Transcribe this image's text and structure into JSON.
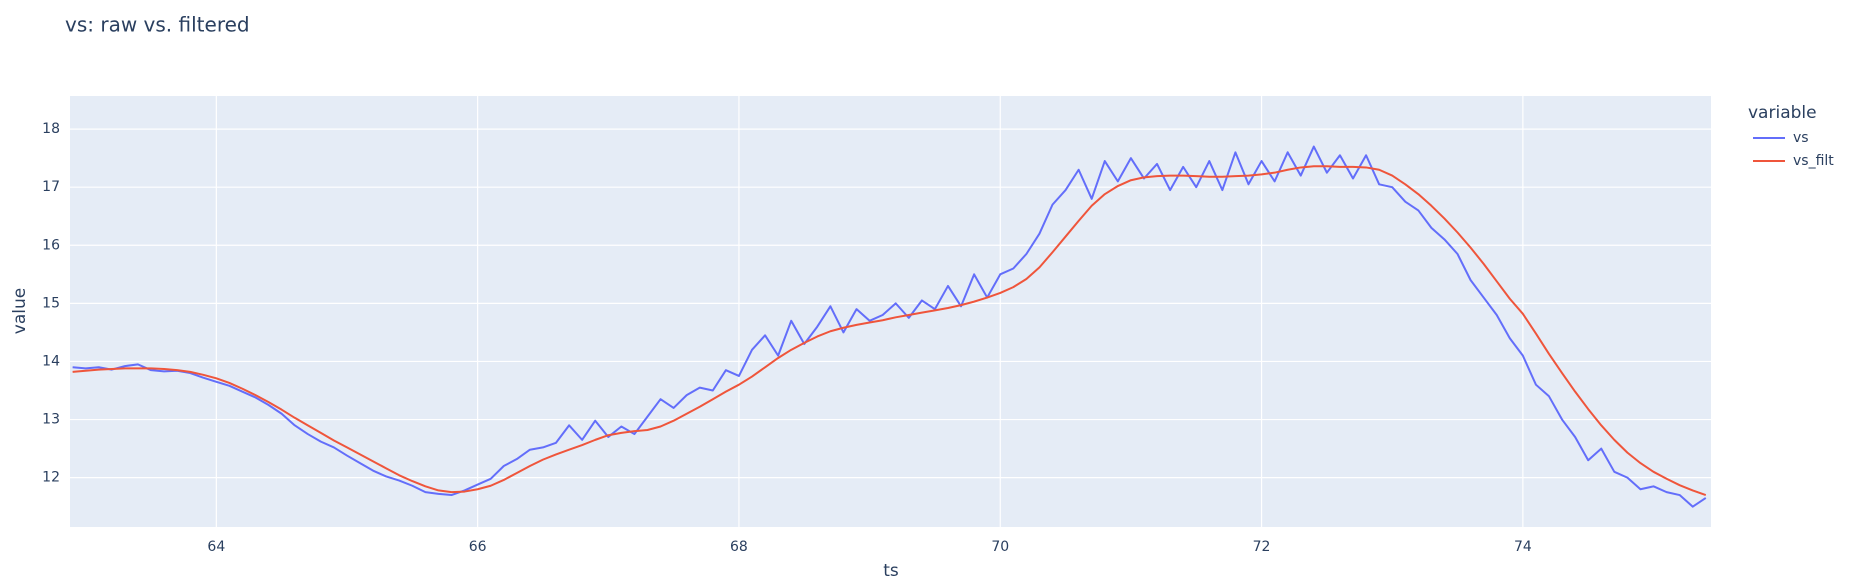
{
  "chart_data": {
    "type": "line",
    "title": "vs: raw vs. filtered",
    "x_label": "ts",
    "y_label": "value",
    "legend_title": "variable",
    "x": [
      62.9,
      63.0,
      63.1,
      63.2,
      63.3,
      63.4,
      63.5,
      63.6,
      63.7,
      63.8,
      63.9,
      64.0,
      64.1,
      64.2,
      64.3,
      64.4,
      64.5,
      64.6,
      64.7,
      64.8,
      64.9,
      65.0,
      65.1,
      65.2,
      65.3,
      65.4,
      65.5,
      65.6,
      65.7,
      65.8,
      65.9,
      66.0,
      66.1,
      66.2,
      66.3,
      66.4,
      66.5,
      66.6,
      66.7,
      66.8,
      66.9,
      67.0,
      67.1,
      67.2,
      67.3,
      67.4,
      67.5,
      67.6,
      67.7,
      67.8,
      67.9,
      68.0,
      68.1,
      68.2,
      68.3,
      68.4,
      68.5,
      68.6,
      68.7,
      68.8,
      68.9,
      69.0,
      69.1,
      69.2,
      69.3,
      69.4,
      69.5,
      69.6,
      69.7,
      69.8,
      69.9,
      70.0,
      70.1,
      70.2,
      70.3,
      70.4,
      70.5,
      70.6,
      70.7,
      70.8,
      70.9,
      71.0,
      71.1,
      71.2,
      71.3,
      71.4,
      71.5,
      71.6,
      71.7,
      71.8,
      71.9,
      72.0,
      72.1,
      72.2,
      72.3,
      72.4,
      72.5,
      72.6,
      72.7,
      72.8,
      72.9,
      73.0,
      73.1,
      73.2,
      73.3,
      73.4,
      73.5,
      73.6,
      73.7,
      73.8,
      73.9,
      74.0,
      74.1,
      74.2,
      74.3,
      74.4,
      74.5,
      74.6,
      74.7,
      74.8,
      74.9,
      75.0,
      75.1,
      75.2,
      75.3,
      75.4
    ],
    "series": [
      {
        "name": "vs",
        "color": "#636efa",
        "values": [
          13.9,
          13.88,
          13.9,
          13.86,
          13.92,
          13.95,
          13.85,
          13.83,
          13.84,
          13.8,
          13.72,
          13.65,
          13.58,
          13.48,
          13.38,
          13.25,
          13.1,
          12.9,
          12.75,
          12.62,
          12.52,
          12.38,
          12.25,
          12.12,
          12.02,
          11.95,
          11.86,
          11.75,
          11.72,
          11.7,
          11.78,
          11.88,
          11.98,
          12.2,
          12.32,
          12.48,
          12.52,
          12.6,
          12.9,
          12.65,
          12.98,
          12.7,
          12.88,
          12.75,
          13.05,
          13.35,
          13.2,
          13.42,
          13.55,
          13.5,
          13.85,
          13.75,
          14.2,
          14.45,
          14.1,
          14.7,
          14.3,
          14.6,
          14.95,
          14.5,
          14.9,
          14.7,
          14.8,
          15.0,
          14.75,
          15.05,
          14.9,
          15.3,
          14.95,
          15.5,
          15.1,
          15.5,
          15.6,
          15.85,
          16.2,
          16.7,
          16.95,
          17.3,
          16.8,
          17.45,
          17.1,
          17.5,
          17.15,
          17.4,
          16.95,
          17.35,
          17.0,
          17.45,
          16.95,
          17.6,
          17.05,
          17.45,
          17.1,
          17.6,
          17.2,
          17.7,
          17.25,
          17.55,
          17.15,
          17.55,
          17.05,
          17.0,
          16.75,
          16.6,
          16.3,
          16.1,
          15.85,
          15.4,
          15.1,
          14.8,
          14.4,
          14.1,
          13.6,
          13.4,
          13.0,
          12.7,
          12.3,
          12.5,
          12.1,
          12.0,
          11.8,
          11.85,
          11.75,
          11.7,
          11.5,
          11.65
        ]
      },
      {
        "name": "vs_filt",
        "color": "#EF553B",
        "values": [
          13.82,
          13.84,
          13.86,
          13.87,
          13.88,
          13.88,
          13.88,
          13.87,
          13.85,
          13.82,
          13.77,
          13.71,
          13.63,
          13.53,
          13.42,
          13.3,
          13.17,
          13.03,
          12.9,
          12.77,
          12.64,
          12.52,
          12.4,
          12.28,
          12.16,
          12.04,
          11.94,
          11.85,
          11.78,
          11.75,
          11.76,
          11.8,
          11.86,
          11.96,
          12.08,
          12.2,
          12.31,
          12.4,
          12.48,
          12.56,
          12.65,
          12.73,
          12.77,
          12.8,
          12.82,
          12.88,
          12.98,
          13.1,
          13.22,
          13.35,
          13.48,
          13.6,
          13.74,
          13.9,
          14.06,
          14.2,
          14.32,
          14.43,
          14.52,
          14.58,
          14.63,
          14.67,
          14.71,
          14.76,
          14.8,
          14.84,
          14.88,
          14.92,
          14.97,
          15.03,
          15.1,
          15.18,
          15.28,
          15.42,
          15.62,
          15.88,
          16.15,
          16.42,
          16.68,
          16.88,
          17.02,
          17.12,
          17.17,
          17.19,
          17.2,
          17.2,
          17.19,
          17.18,
          17.18,
          17.19,
          17.2,
          17.22,
          17.25,
          17.3,
          17.34,
          17.36,
          17.36,
          17.35,
          17.35,
          17.34,
          17.3,
          17.2,
          17.05,
          16.88,
          16.68,
          16.46,
          16.22,
          15.96,
          15.68,
          15.38,
          15.08,
          14.82,
          14.48,
          14.13,
          13.8,
          13.48,
          13.18,
          12.9,
          12.65,
          12.43,
          12.25,
          12.1,
          11.98,
          11.87,
          11.78,
          11.7
        ]
      }
    ],
    "xlim": [
      62.88,
      75.44
    ],
    "ylim": [
      11.15,
      18.57
    ],
    "xticks": [
      64,
      66,
      68,
      70,
      72,
      74
    ],
    "yticks": [
      12,
      13,
      14,
      15,
      16,
      17,
      18
    ],
    "grid": true,
    "legend_position": "right"
  }
}
